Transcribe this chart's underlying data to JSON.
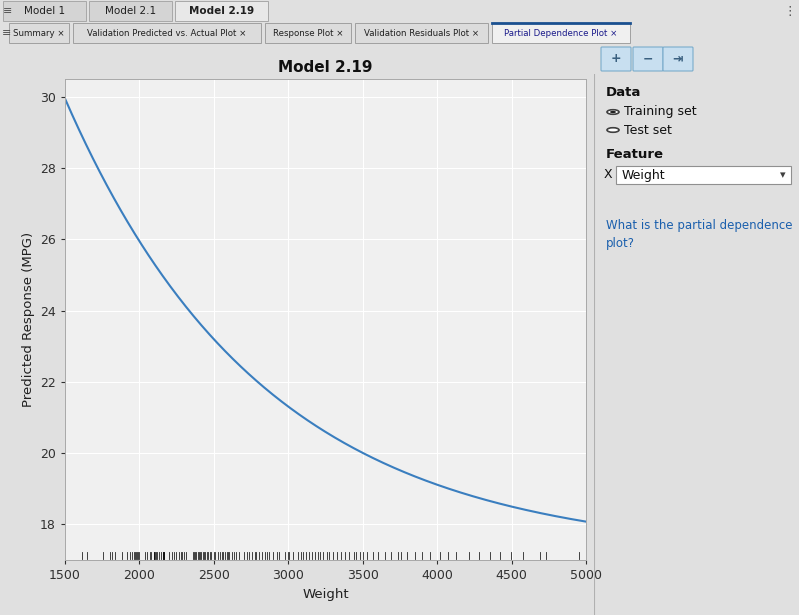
{
  "title": "Model 2.19",
  "xlabel": "Weight",
  "ylabel": "Predicted Response (MPG)",
  "xlim": [
    1500,
    5000
  ],
  "ylim": [
    17.0,
    30.5
  ],
  "yticks": [
    18,
    20,
    22,
    24,
    26,
    28,
    30
  ],
  "xticks": [
    1500,
    2000,
    2500,
    3000,
    3500,
    4000,
    4500,
    5000
  ],
  "line_color": "#3a7ebf",
  "bg_color": "#e0e0e0",
  "plot_bg_color": "#f0f0f0",
  "grid_color": "#ffffff",
  "curve_A": 12.8,
  "curve_k": 0.00075,
  "curve_c": 17.15,
  "tab1_text": "Model 1",
  "tab2_text": "Model 2.1",
  "tab3_text": "Model 2.19",
  "subtab1": "Summary ×",
  "subtab2": "Validation Predicted vs. Actual Plot ×",
  "subtab3": "Response Plot ×",
  "subtab4": "Validation Residuals Plot ×",
  "subtab5": "Partial Dependence Plot ×",
  "sidebar_title1": "Data",
  "sidebar_radio1": "Training set",
  "sidebar_radio2": "Test set",
  "sidebar_title2": "Feature",
  "sidebar_feature_label": "X",
  "sidebar_feature_value": "Weight",
  "sidebar_link": "What is the partial dependence\nplot?",
  "rug_data": [
    1613,
    1649,
    1755,
    1800,
    1818,
    1836,
    1883,
    1915,
    1940,
    1948,
    1963,
    1967,
    1975,
    1985,
    1990,
    2000,
    2035,
    2051,
    2070,
    2075,
    2095,
    2100,
    2104,
    2108,
    2121,
    2132,
    2145,
    2155,
    2158,
    2164,
    2168,
    2200,
    2220,
    2230,
    2246,
    2265,
    2278,
    2286,
    2300,
    2315,
    2360,
    2365,
    2375,
    2380,
    2392,
    2400,
    2408,
    2414,
    2425,
    2434,
    2440,
    2451,
    2461,
    2472,
    2480,
    2499,
    2510,
    2525,
    2540,
    2556,
    2560,
    2574,
    2587,
    2595,
    2605,
    2620,
    2635,
    2651,
    2670,
    2701,
    2720,
    2735,
    2755,
    2774,
    2780,
    2800,
    2822,
    2841,
    2855,
    2870,
    2900,
    2921,
    2940,
    2979,
    2999,
    3008,
    3030,
    3065,
    3086,
    3100,
    3121,
    3140,
    3158,
    3180,
    3197,
    3210,
    3233,
    3259,
    3274,
    3302,
    3330,
    3355,
    3380,
    3406,
    3440,
    3455,
    3480,
    3505,
    3530,
    3570,
    3600,
    3651,
    3693,
    3735,
    3755,
    3800,
    3850,
    3900,
    3955,
    4022,
    4075,
    4129,
    4215,
    4278,
    4354,
    4425,
    4498,
    4580,
    4693,
    4732,
    4951
  ],
  "title_fontsize": 11,
  "label_fontsize": 9.5,
  "tick_fontsize": 9
}
